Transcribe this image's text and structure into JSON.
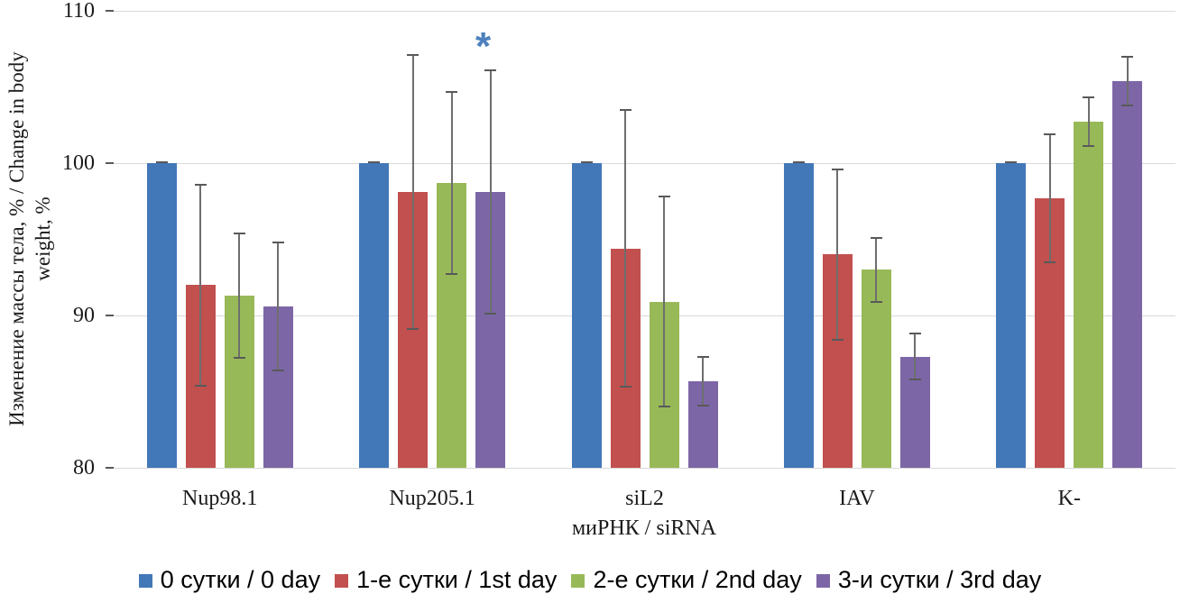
{
  "chart_data": {
    "type": "bar",
    "title": "",
    "xlabel": "миРНК / siRNA",
    "ylabel_line1": "Изменение массы тела, % / Change in body",
    "ylabel_line2": "weight, %",
    "categories": [
      "Nup98.1",
      "Nup205.1",
      "siL2",
      "IAV",
      "K-"
    ],
    "series": [
      {
        "name": "0 сутки / 0 day",
        "color": "#4277b8",
        "values": [
          100,
          100,
          100,
          100,
          100
        ],
        "errors": [
          0,
          0,
          0,
          0,
          0
        ]
      },
      {
        "name": "1-е сутки / 1st day",
        "color": "#c1504e",
        "values": [
          92.0,
          98.1,
          94.4,
          94.0,
          97.7
        ],
        "errors": [
          6.6,
          9.0,
          9.1,
          5.6,
          4.2
        ]
      },
      {
        "name": "2-е сутки / 2nd day",
        "color": "#98b958",
        "values": [
          91.3,
          98.7,
          90.9,
          93.0,
          102.7
        ],
        "errors": [
          4.1,
          6.0,
          6.9,
          2.1,
          1.6
        ]
      },
      {
        "name": "3-и сутки / 3rd day",
        "color": "#7c66a6",
        "values": [
          90.6,
          98.1,
          85.7,
          87.3,
          105.4
        ],
        "errors": [
          4.2,
          8.0,
          1.6,
          1.5,
          1.6
        ]
      }
    ],
    "annotation": {
      "text": "*",
      "category_index": 1,
      "series_index": 3,
      "color": "#4e81bd"
    },
    "ylim": [
      80,
      110
    ],
    "yticks": [
      80,
      90,
      100,
      110
    ],
    "grid": true,
    "legend_position": "bottom",
    "colors": {
      "gridline": "#d9d9d9",
      "error_bar": "#6e6e6e",
      "text": "#1a1a1a"
    }
  }
}
